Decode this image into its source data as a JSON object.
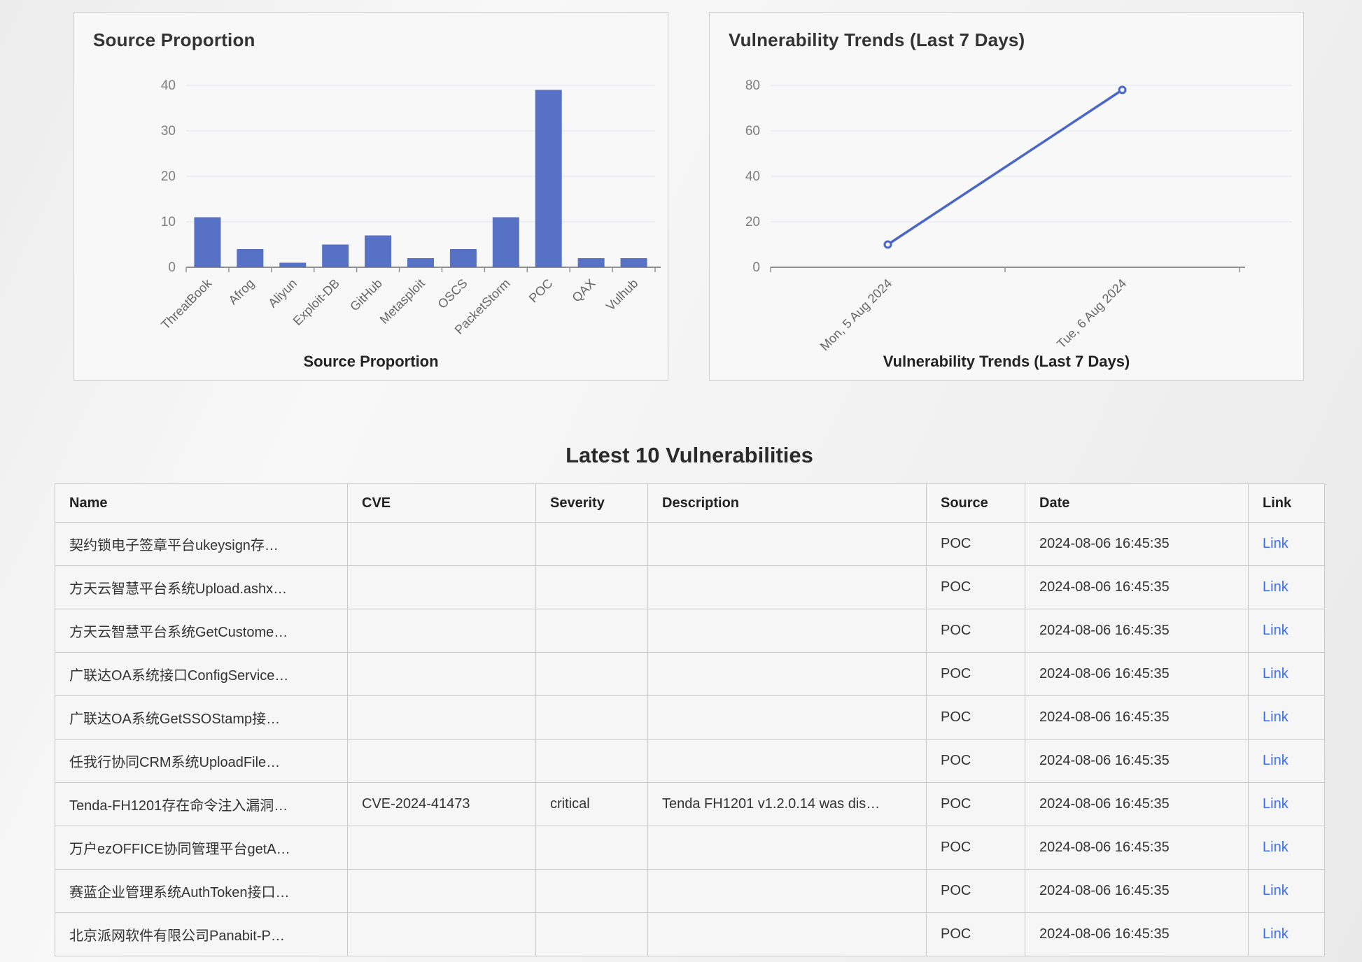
{
  "cards": [
    {
      "title": "Source Proportion",
      "caption": "Source Proportion"
    },
    {
      "title": "Vulnerability Trends (Last 7 Days)",
      "caption": "Vulnerability Trends (Last 7 Days)"
    }
  ],
  "chart_data": [
    {
      "type": "bar",
      "title": "Source Proportion",
      "categories": [
        "ThreatBook",
        "Afrog",
        "Aliyun",
        "Exploit-DB",
        "GitHub",
        "Metasploit",
        "OSCS",
        "PacketStorm",
        "POC",
        "QAX",
        "Vulhub"
      ],
      "values": [
        11,
        4,
        1,
        5,
        7,
        2,
        4,
        11,
        39,
        2,
        2
      ],
      "xlabel": "",
      "ylabel": "",
      "ylim": [
        0,
        40
      ],
      "yticks": [
        0,
        10,
        20,
        30,
        40
      ],
      "grid": true,
      "legend": "none",
      "bar_color": "#5771c4"
    },
    {
      "type": "line",
      "title": "Vulnerability Trends (Last 7 Days)",
      "categories": [
        "Mon, 5 Aug 2024",
        "Tue, 6 Aug 2024"
      ],
      "values": [
        10,
        78
      ],
      "xlabel": "",
      "ylabel": "",
      "ylim": [
        0,
        80
      ],
      "yticks": [
        0,
        20,
        40,
        60,
        80
      ],
      "grid": true,
      "legend": "none",
      "line_color": "#4a66c6"
    }
  ],
  "table": {
    "heading": "Latest 10 Vulnerabilities",
    "columns": [
      "Name",
      "CVE",
      "Severity",
      "Description",
      "Source",
      "Date",
      "Link"
    ],
    "rows": [
      {
        "name": "契约锁电子签章平台ukeysign存…",
        "cve": "",
        "severity": "",
        "description": "",
        "source": "POC",
        "date": "2024-08-06 16:45:35",
        "link": "Link"
      },
      {
        "name": "方天云智慧平台系统Upload.ashx…",
        "cve": "",
        "severity": "",
        "description": "",
        "source": "POC",
        "date": "2024-08-06 16:45:35",
        "link": "Link"
      },
      {
        "name": "方天云智慧平台系统GetCustome…",
        "cve": "",
        "severity": "",
        "description": "",
        "source": "POC",
        "date": "2024-08-06 16:45:35",
        "link": "Link"
      },
      {
        "name": "广联达OA系统接口ConfigService…",
        "cve": "",
        "severity": "",
        "description": "",
        "source": "POC",
        "date": "2024-08-06 16:45:35",
        "link": "Link"
      },
      {
        "name": "广联达OA系统GetSSOStamp接…",
        "cve": "",
        "severity": "",
        "description": "",
        "source": "POC",
        "date": "2024-08-06 16:45:35",
        "link": "Link"
      },
      {
        "name": "任我行协同CRM系统UploadFile…",
        "cve": "",
        "severity": "",
        "description": "",
        "source": "POC",
        "date": "2024-08-06 16:45:35",
        "link": "Link"
      },
      {
        "name": "Tenda-FH1201存在命令注入漏洞…",
        "cve": "CVE-2024-41473",
        "severity": "critical",
        "description": "Tenda FH1201 v1.2.0.14 was dis…",
        "source": "POC",
        "date": "2024-08-06 16:45:35",
        "link": "Link"
      },
      {
        "name": "万户ezOFFICE协同管理平台getA…",
        "cve": "",
        "severity": "",
        "description": "",
        "source": "POC",
        "date": "2024-08-06 16:45:35",
        "link": "Link"
      },
      {
        "name": "赛蓝企业管理系统AuthToken接口…",
        "cve": "",
        "severity": "",
        "description": "",
        "source": "POC",
        "date": "2024-08-06 16:45:35",
        "link": "Link"
      },
      {
        "name": "北京派网软件有限公司Panabit-P…",
        "cve": "",
        "severity": "",
        "description": "",
        "source": "POC",
        "date": "2024-08-06 16:45:35",
        "link": "Link"
      }
    ]
  },
  "colors": {
    "bar": "#5771c4",
    "line": "#4a66c6",
    "link": "#3a6cf0",
    "grid": "#e8ebf4",
    "axis": "#8f8f8f",
    "tick_text": "#7d7d7d",
    "category_text": "#666666"
  }
}
